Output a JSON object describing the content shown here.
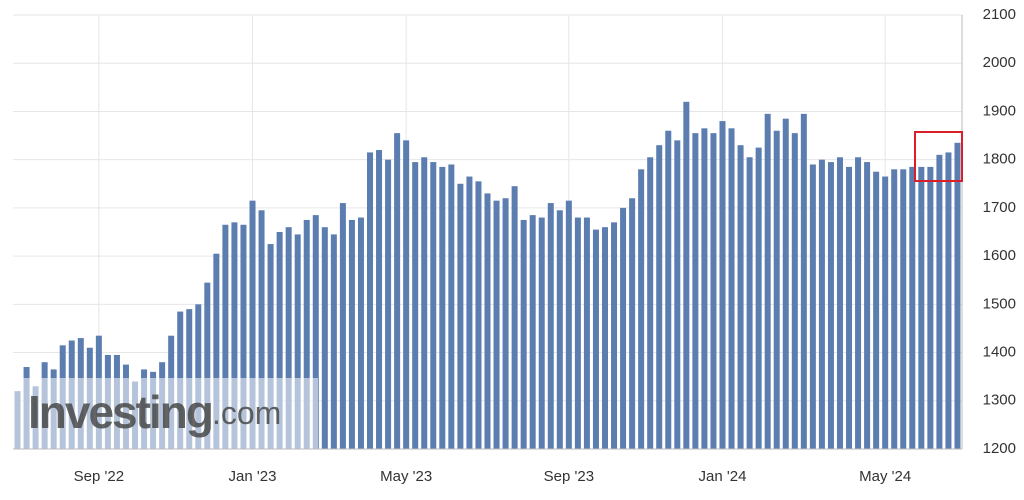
{
  "chart_data": {
    "type": "bar",
    "watermark": {
      "name": "Investing",
      "suffix": ".com"
    },
    "categories": [
      null,
      null,
      null,
      null,
      null,
      null,
      null,
      null,
      null,
      "Sep '22",
      null,
      null,
      null,
      null,
      null,
      null,
      null,
      null,
      null,
      null,
      null,
      null,
      null,
      null,
      null,
      null,
      "Jan '23",
      null,
      null,
      null,
      null,
      null,
      null,
      null,
      null,
      null,
      null,
      null,
      null,
      null,
      null,
      null,
      null,
      "May '23",
      null,
      null,
      null,
      null,
      null,
      null,
      null,
      null,
      null,
      null,
      null,
      null,
      null,
      null,
      null,
      null,
      null,
      "Sep '23",
      null,
      null,
      null,
      null,
      null,
      null,
      null,
      null,
      null,
      null,
      null,
      null,
      null,
      null,
      null,
      null,
      "Jan '24",
      null,
      null,
      null,
      null,
      null,
      null,
      null,
      null,
      null,
      null,
      null,
      null,
      null,
      null,
      null,
      null,
      null,
      "May '24",
      null,
      null,
      null,
      null,
      null,
      null,
      null,
      null
    ],
    "values": [
      1320,
      1370,
      1330,
      1380,
      1365,
      1415,
      1425,
      1430,
      1410,
      1435,
      1395,
      1395,
      1375,
      1340,
      1365,
      1360,
      1380,
      1435,
      1485,
      1490,
      1500,
      1545,
      1605,
      1665,
      1670,
      1665,
      1715,
      1695,
      1625,
      1650,
      1660,
      1645,
      1675,
      1685,
      1660,
      1645,
      1710,
      1675,
      1680,
      1815,
      1820,
      1800,
      1855,
      1840,
      1795,
      1805,
      1795,
      1785,
      1790,
      1750,
      1765,
      1755,
      1730,
      1715,
      1720,
      1745,
      1675,
      1685,
      1680,
      1710,
      1695,
      1715,
      1680,
      1680,
      1655,
      1660,
      1670,
      1700,
      1720,
      1780,
      1805,
      1830,
      1860,
      1840,
      1920,
      1855,
      1865,
      1855,
      1880,
      1865,
      1830,
      1805,
      1825,
      1895,
      1860,
      1885,
      1855,
      1895,
      1790,
      1800,
      1795,
      1805,
      1785,
      1805,
      1795,
      1775,
      1765,
      1780,
      1780,
      1785,
      1785,
      1785,
      1810,
      1815,
      1835
    ],
    "color": "#5b7db0",
    "ylim": [
      1200,
      2100
    ],
    "yticks": [
      1200,
      1300,
      1400,
      1500,
      1600,
      1700,
      1800,
      1900,
      2000,
      2100
    ],
    "grid": true
  }
}
